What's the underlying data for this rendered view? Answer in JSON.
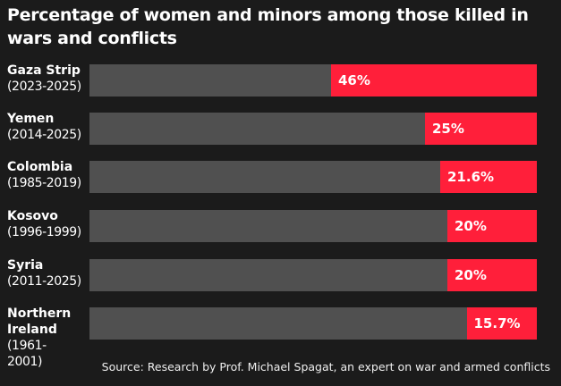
{
  "chart_data": {
    "type": "bar",
    "orientation": "horizontal",
    "title": "Percentage of women and minors among those killed in wars and conflicts",
    "categories": [
      {
        "name": "Gaza Strip",
        "years": "(2023-2025)"
      },
      {
        "name": "Yemen",
        "years": "(2014-2025)"
      },
      {
        "name": "Colombia",
        "years": "(1985-2019)"
      },
      {
        "name": "Kosovo",
        "years": "(1996-1999)"
      },
      {
        "name": "Syria",
        "years": "(2011-2025)"
      },
      {
        "name": "Northern Ireland",
        "years": "(1961-2001)"
      }
    ],
    "values": [
      46,
      25,
      21.6,
      20,
      20,
      15.7
    ],
    "value_labels": [
      "46%",
      "25%",
      "21.6%",
      "20%",
      "20%",
      "15.7%"
    ],
    "xlim": [
      0,
      100
    ],
    "colors": {
      "background": "#1b1b1b",
      "track": "#505050",
      "fill": "#ff1f3a"
    }
  },
  "source": "Source: Research by Prof. Michael Spagat, an expert on war and armed conflicts"
}
